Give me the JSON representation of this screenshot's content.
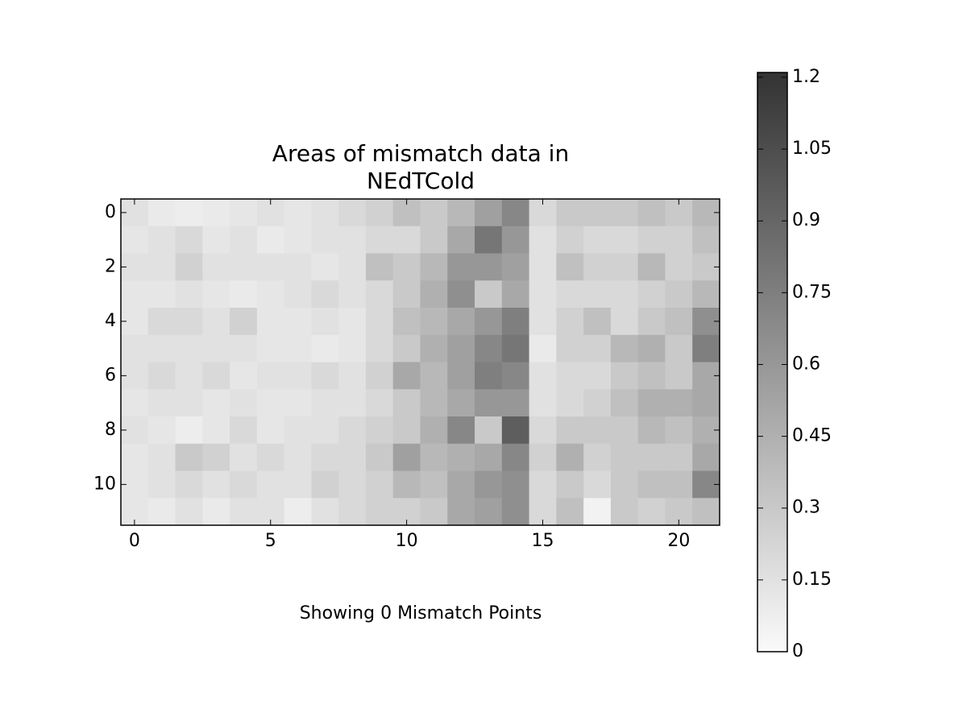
{
  "chart_data": {
    "type": "heatmap",
    "title": "Areas of mismatch data in\nNEdTCold",
    "xlabel": "Showing 0 Mismatch Points",
    "xlim": [
      -0.5,
      21.5
    ],
    "xticks": [
      0,
      5,
      10,
      15,
      20
    ],
    "ylim": [
      11.5,
      -0.5
    ],
    "yticks": [
      0,
      2,
      4,
      6,
      8,
      10
    ],
    "clim": [
      0,
      1.21
    ],
    "cticks": [
      0,
      0.15,
      0.3,
      0.45,
      0.6,
      0.75,
      0.9,
      1.05,
      1.2
    ],
    "cmap": [
      "#fafafa",
      "#333333"
    ],
    "z": [
      [
        0.15,
        0.1,
        0.08,
        0.1,
        0.12,
        0.15,
        0.12,
        0.15,
        0.2,
        0.25,
        0.35,
        0.3,
        0.4,
        0.55,
        0.7,
        0.2,
        0.3,
        0.3,
        0.3,
        0.35,
        0.3,
        0.4
      ],
      [
        0.12,
        0.15,
        0.2,
        0.12,
        0.15,
        0.1,
        0.12,
        0.15,
        0.15,
        0.2,
        0.2,
        0.3,
        0.5,
        0.8,
        0.6,
        0.15,
        0.25,
        0.2,
        0.2,
        0.25,
        0.25,
        0.35
      ],
      [
        0.15,
        0.15,
        0.25,
        0.15,
        0.15,
        0.15,
        0.15,
        0.12,
        0.15,
        0.35,
        0.3,
        0.4,
        0.6,
        0.6,
        0.55,
        0.15,
        0.35,
        0.25,
        0.25,
        0.4,
        0.25,
        0.3
      ],
      [
        0.12,
        0.12,
        0.15,
        0.12,
        0.1,
        0.12,
        0.15,
        0.2,
        0.15,
        0.2,
        0.3,
        0.45,
        0.65,
        0.3,
        0.5,
        0.15,
        0.2,
        0.2,
        0.2,
        0.25,
        0.3,
        0.4
      ],
      [
        0.12,
        0.2,
        0.2,
        0.15,
        0.25,
        0.12,
        0.12,
        0.15,
        0.12,
        0.2,
        0.35,
        0.4,
        0.5,
        0.6,
        0.75,
        0.15,
        0.25,
        0.35,
        0.2,
        0.3,
        0.35,
        0.65
      ],
      [
        0.15,
        0.15,
        0.15,
        0.15,
        0.15,
        0.12,
        0.12,
        0.1,
        0.12,
        0.2,
        0.3,
        0.45,
        0.55,
        0.7,
        0.8,
        0.1,
        0.25,
        0.25,
        0.4,
        0.45,
        0.3,
        0.75
      ],
      [
        0.15,
        0.2,
        0.15,
        0.2,
        0.12,
        0.15,
        0.15,
        0.2,
        0.15,
        0.25,
        0.5,
        0.4,
        0.55,
        0.75,
        0.7,
        0.15,
        0.2,
        0.2,
        0.3,
        0.35,
        0.3,
        0.5
      ],
      [
        0.12,
        0.15,
        0.15,
        0.12,
        0.15,
        0.12,
        0.12,
        0.15,
        0.15,
        0.2,
        0.3,
        0.4,
        0.5,
        0.6,
        0.6,
        0.15,
        0.2,
        0.25,
        0.35,
        0.45,
        0.45,
        0.5
      ],
      [
        0.15,
        0.12,
        0.08,
        0.12,
        0.2,
        0.12,
        0.15,
        0.15,
        0.2,
        0.25,
        0.3,
        0.45,
        0.7,
        0.3,
        0.95,
        0.2,
        0.3,
        0.3,
        0.3,
        0.4,
        0.35,
        0.45
      ],
      [
        0.12,
        0.15,
        0.3,
        0.25,
        0.15,
        0.2,
        0.15,
        0.2,
        0.2,
        0.3,
        0.55,
        0.4,
        0.45,
        0.5,
        0.7,
        0.25,
        0.45,
        0.25,
        0.3,
        0.3,
        0.3,
        0.5
      ],
      [
        0.12,
        0.15,
        0.2,
        0.15,
        0.2,
        0.15,
        0.15,
        0.25,
        0.2,
        0.25,
        0.4,
        0.35,
        0.5,
        0.6,
        0.65,
        0.2,
        0.3,
        0.2,
        0.3,
        0.35,
        0.35,
        0.7
      ],
      [
        0.12,
        0.1,
        0.15,
        0.1,
        0.15,
        0.15,
        0.08,
        0.15,
        0.2,
        0.25,
        0.25,
        0.3,
        0.5,
        0.55,
        0.65,
        0.2,
        0.35,
        0.05,
        0.3,
        0.25,
        0.3,
        0.35
      ]
    ]
  }
}
